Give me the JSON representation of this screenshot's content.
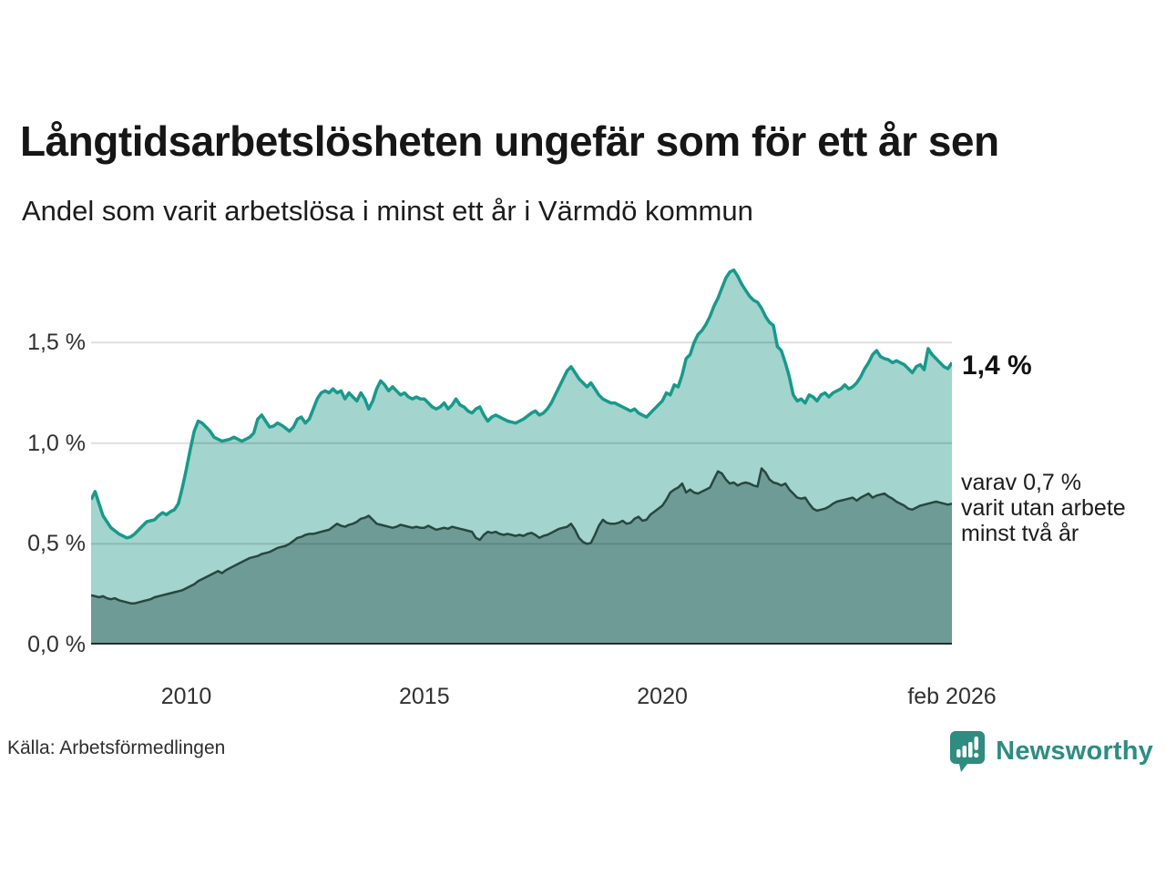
{
  "header": {
    "title": "Långtidsarbetslösheten ungefär som för ett år sen",
    "subtitle": "Andel som varit arbetslösa i minst ett år i Värmdö kommun"
  },
  "chart_data": {
    "type": "area",
    "title": "Långtidsarbetslösheten ungefär som för ett år sen",
    "subtitle": "Andel som varit arbetslösa i minst ett år i Värmdö kommun",
    "x_start": 2008.0,
    "x_end": 2026.0833,
    "x_unit": "month",
    "ylim": [
      0,
      1.89
    ],
    "grid": true,
    "legend_position": "none",
    "x_ticks": [
      {
        "x": 2010,
        "label": "2010"
      },
      {
        "x": 2015,
        "label": "2015"
      },
      {
        "x": 2020,
        "label": "2020"
      },
      {
        "x": 2026.0833,
        "label": "feb 2026"
      }
    ],
    "y_ticks": [
      {
        "value": 0.0,
        "label": "0,0 %"
      },
      {
        "value": 0.5,
        "label": "0,5 %"
      },
      {
        "value": 1.0,
        "label": "1,0 %"
      },
      {
        "value": 1.5,
        "label": "1,5 %"
      }
    ],
    "series": [
      {
        "name": "Arbetslösa minst ett år",
        "color": "#18998b",
        "fill": "#a3d4cd",
        "stroke_width": 3.5,
        "last_value_label": "1,4 %",
        "values": [
          0.72,
          0.76,
          0.7,
          0.64,
          0.61,
          0.58,
          0.565,
          0.55,
          0.54,
          0.53,
          0.535,
          0.55,
          0.57,
          0.59,
          0.61,
          0.615,
          0.62,
          0.64,
          0.655,
          0.645,
          0.66,
          0.67,
          0.7,
          0.78,
          0.87,
          0.97,
          1.06,
          1.11,
          1.1,
          1.08,
          1.06,
          1.03,
          1.02,
          1.01,
          1.015,
          1.02,
          1.03,
          1.02,
          1.01,
          1.02,
          1.03,
          1.05,
          1.12,
          1.14,
          1.11,
          1.08,
          1.085,
          1.1,
          1.09,
          1.075,
          1.06,
          1.08,
          1.12,
          1.13,
          1.1,
          1.12,
          1.17,
          1.22,
          1.25,
          1.26,
          1.25,
          1.27,
          1.25,
          1.26,
          1.22,
          1.25,
          1.23,
          1.21,
          1.25,
          1.22,
          1.17,
          1.21,
          1.27,
          1.31,
          1.29,
          1.26,
          1.28,
          1.26,
          1.24,
          1.25,
          1.23,
          1.22,
          1.23,
          1.22,
          1.22,
          1.2,
          1.18,
          1.17,
          1.18,
          1.2,
          1.17,
          1.19,
          1.22,
          1.19,
          1.18,
          1.16,
          1.15,
          1.17,
          1.18,
          1.14,
          1.11,
          1.13,
          1.14,
          1.13,
          1.12,
          1.11,
          1.105,
          1.1,
          1.11,
          1.12,
          1.135,
          1.15,
          1.16,
          1.14,
          1.15,
          1.17,
          1.2,
          1.24,
          1.28,
          1.32,
          1.36,
          1.38,
          1.35,
          1.32,
          1.3,
          1.28,
          1.3,
          1.27,
          1.24,
          1.22,
          1.21,
          1.2,
          1.2,
          1.19,
          1.18,
          1.17,
          1.16,
          1.17,
          1.15,
          1.14,
          1.13,
          1.15,
          1.17,
          1.19,
          1.21,
          1.25,
          1.24,
          1.29,
          1.28,
          1.34,
          1.42,
          1.44,
          1.5,
          1.54,
          1.56,
          1.59,
          1.63,
          1.68,
          1.72,
          1.77,
          1.82,
          1.85,
          1.86,
          1.83,
          1.79,
          1.76,
          1.73,
          1.71,
          1.7,
          1.67,
          1.63,
          1.6,
          1.585,
          1.48,
          1.46,
          1.4,
          1.33,
          1.24,
          1.21,
          1.22,
          1.2,
          1.24,
          1.23,
          1.21,
          1.24,
          1.25,
          1.23,
          1.25,
          1.26,
          1.27,
          1.29,
          1.27,
          1.28,
          1.3,
          1.33,
          1.37,
          1.4,
          1.44,
          1.46,
          1.43,
          1.42,
          1.415,
          1.4,
          1.41,
          1.4,
          1.39,
          1.37,
          1.35,
          1.38,
          1.39,
          1.365,
          1.47,
          1.44,
          1.42,
          1.4,
          1.38,
          1.37,
          1.4
        ]
      },
      {
        "name": "Utan arbete minst två år",
        "color": "#27473f",
        "fill": "#6f9b96",
        "stroke_width": 2.5,
        "last_value_label": "0,7 %",
        "values": [
          0.245,
          0.24,
          0.235,
          0.24,
          0.23,
          0.225,
          0.23,
          0.22,
          0.215,
          0.21,
          0.205,
          0.205,
          0.21,
          0.215,
          0.22,
          0.225,
          0.235,
          0.24,
          0.245,
          0.25,
          0.255,
          0.26,
          0.265,
          0.27,
          0.28,
          0.29,
          0.3,
          0.315,
          0.325,
          0.335,
          0.345,
          0.355,
          0.365,
          0.355,
          0.37,
          0.38,
          0.39,
          0.4,
          0.41,
          0.42,
          0.43,
          0.435,
          0.44,
          0.45,
          0.455,
          0.46,
          0.47,
          0.48,
          0.485,
          0.49,
          0.5,
          0.515,
          0.53,
          0.535,
          0.545,
          0.55,
          0.55,
          0.555,
          0.56,
          0.565,
          0.57,
          0.585,
          0.6,
          0.59,
          0.585,
          0.595,
          0.6,
          0.61,
          0.625,
          0.63,
          0.64,
          0.62,
          0.6,
          0.595,
          0.59,
          0.585,
          0.58,
          0.585,
          0.595,
          0.59,
          0.585,
          0.58,
          0.585,
          0.58,
          0.58,
          0.59,
          0.58,
          0.57,
          0.575,
          0.58,
          0.575,
          0.585,
          0.58,
          0.575,
          0.57,
          0.565,
          0.56,
          0.53,
          0.52,
          0.545,
          0.56,
          0.555,
          0.56,
          0.55,
          0.545,
          0.55,
          0.545,
          0.54,
          0.545,
          0.54,
          0.55,
          0.555,
          0.545,
          0.53,
          0.54,
          0.545,
          0.555,
          0.565,
          0.575,
          0.58,
          0.585,
          0.6,
          0.57,
          0.53,
          0.51,
          0.5,
          0.505,
          0.545,
          0.59,
          0.62,
          0.605,
          0.6,
          0.6,
          0.605,
          0.615,
          0.6,
          0.605,
          0.625,
          0.635,
          0.615,
          0.62,
          0.645,
          0.66,
          0.675,
          0.69,
          0.72,
          0.755,
          0.77,
          0.78,
          0.8,
          0.755,
          0.77,
          0.755,
          0.75,
          0.76,
          0.77,
          0.78,
          0.82,
          0.86,
          0.85,
          0.82,
          0.8,
          0.805,
          0.79,
          0.8,
          0.805,
          0.8,
          0.79,
          0.785,
          0.875,
          0.855,
          0.82,
          0.805,
          0.8,
          0.79,
          0.8,
          0.77,
          0.75,
          0.73,
          0.725,
          0.73,
          0.7,
          0.675,
          0.665,
          0.67,
          0.675,
          0.685,
          0.7,
          0.71,
          0.715,
          0.72,
          0.725,
          0.73,
          0.715,
          0.73,
          0.74,
          0.75,
          0.73,
          0.74,
          0.745,
          0.75,
          0.735,
          0.725,
          0.71,
          0.7,
          0.69,
          0.675,
          0.67,
          0.68,
          0.69,
          0.695,
          0.7,
          0.705,
          0.71,
          0.705,
          0.7,
          0.695,
          0.7
        ]
      }
    ],
    "annotations": {
      "primary": "1,4 %",
      "secondary_lines": [
        "varav 0,7 %",
        "varit utan arbete",
        "minst två år"
      ]
    }
  },
  "footer": {
    "source": "Källa: Arbetsförmedlingen",
    "brand": "Newsworthy"
  },
  "colors": {
    "accent_teal": "#18998b",
    "light_fill": "#a3d4cd",
    "dark_fill": "#6f9b96",
    "dark_stroke": "#27473f",
    "brand_teal": "#2e8c81",
    "gridline": "rgba(0,0,0,0.13)",
    "baseline": "#2b2b2b"
  }
}
